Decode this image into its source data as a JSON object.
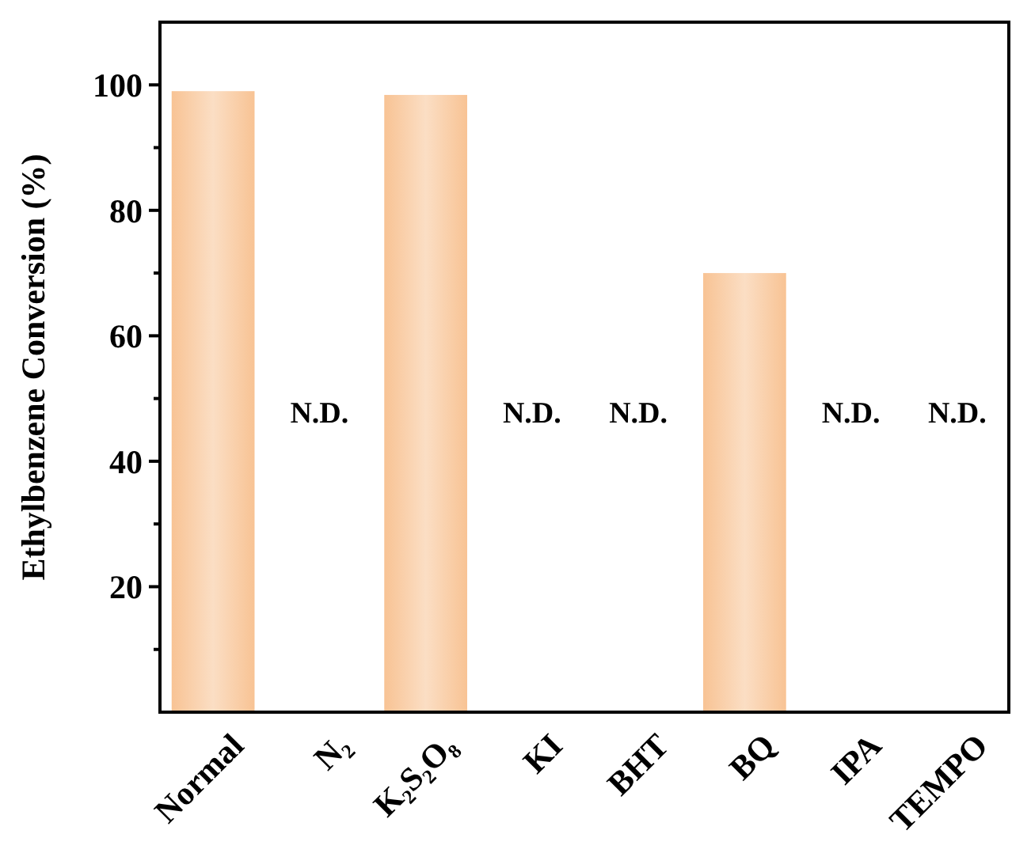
{
  "chart_data": {
    "type": "bar",
    "ylabel": "Ethylbenzene Conversion (%)",
    "categories": [
      "Normal",
      "N₂",
      "K₂S₂O₈",
      "KI",
      "BHT",
      "BQ",
      "IPA",
      "TEMPO"
    ],
    "values": [
      99,
      null,
      98.4,
      null,
      null,
      70,
      null,
      null
    ],
    "value_labels": [
      null,
      "N.D.",
      null,
      "N.D.",
      "N.D.",
      null,
      "N.D.",
      "N.D."
    ],
    "color": "#f8c394",
    "ylim": [
      0,
      110
    ],
    "yticks": [
      {
        "value": 10,
        "label": null
      },
      20,
      {
        "value": 30,
        "label": null
      },
      40,
      {
        "value": 50,
        "label": null
      },
      60,
      {
        "value": 70,
        "label": null
      },
      80,
      {
        "value": 90,
        "label": null
      },
      100
    ],
    "grid": false
  }
}
